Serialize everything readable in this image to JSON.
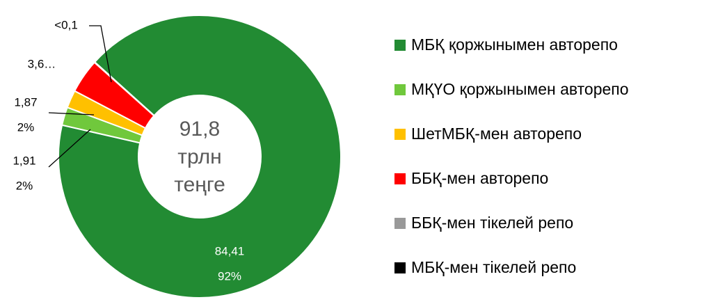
{
  "chart_data": {
    "type": "donut",
    "center_text": [
      "91,8",
      "трлн",
      "теңге"
    ],
    "series": [
      {
        "name": "МБҚ қоржынымен авторепо",
        "color": "#228b33"
      },
      {
        "name": "МҚҮО қоржынымен авторепо",
        "color": "#70c83c"
      },
      {
        "name": "ШетМБҚ-мен авторепо",
        "color": "#ffc000"
      },
      {
        "name": "ББҚ-мен авторепо",
        "color": "#ff0000"
      },
      {
        "name": "ББҚ-мен тікелей репо",
        "color": "#999999"
      },
      {
        "name": "МБҚ-мен тікелей репо",
        "color": "#000000"
      }
    ],
    "values": [
      84.41,
      1.91,
      1.87,
      3.6,
      0.05,
      0
    ],
    "value_labels": [
      "84,41",
      "1,91",
      "1,87",
      "3,6…",
      "<0,1",
      null
    ],
    "percent_labels": [
      "92%",
      "2%",
      "2%",
      null,
      null,
      null
    ],
    "legend": "right"
  }
}
